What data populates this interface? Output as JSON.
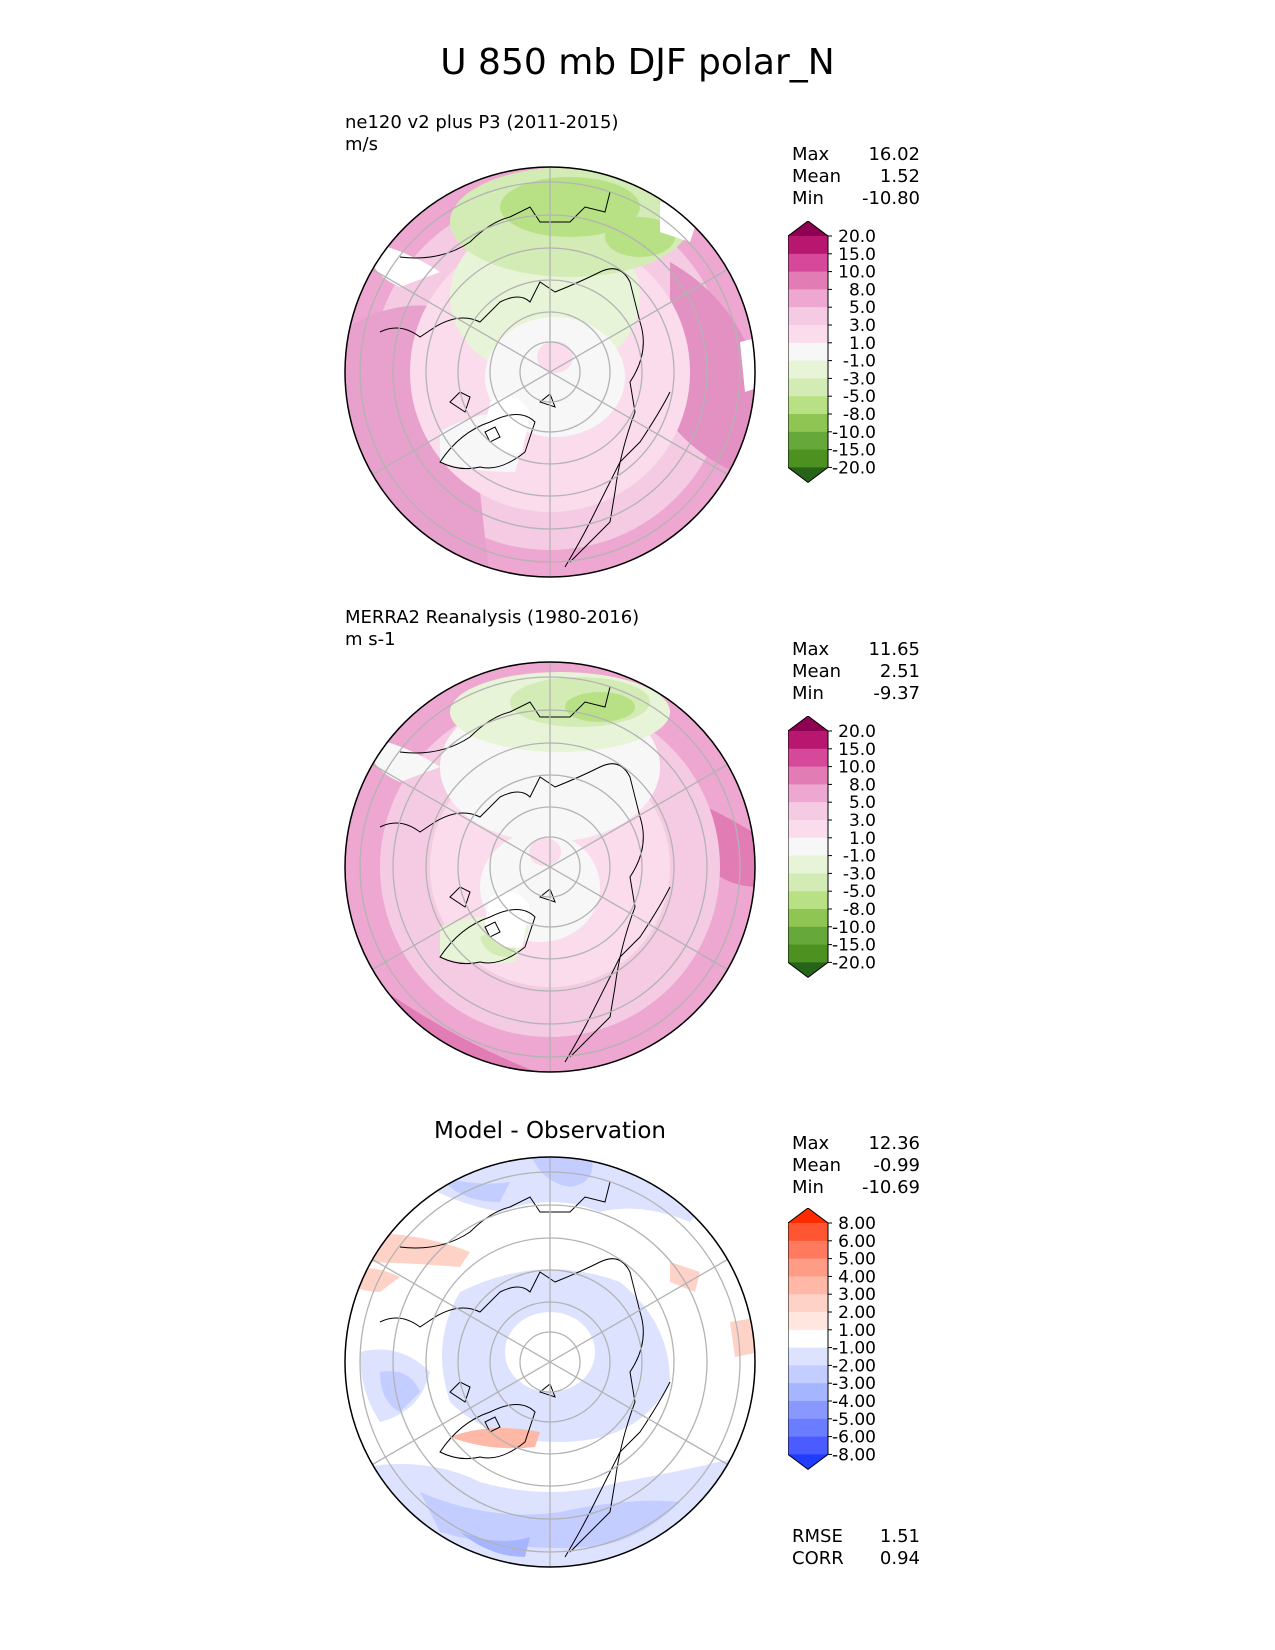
{
  "figure": {
    "title": "U 850 mb DJF polar_N"
  },
  "panels": [
    {
      "id": "test",
      "title_line1": "ne120 v2 plus P3 (2011-2015)",
      "title_line2": "m/s",
      "stats": {
        "max_label": "Max",
        "max": "16.02",
        "mean_label": "Mean",
        "mean": "1.52",
        "min_label": "Min",
        "min": "-10.80"
      },
      "colorbar": {
        "levels": [
          "20.0",
          "15.0",
          "10.0",
          "8.0",
          "5.0",
          "3.0",
          "1.0",
          "-1.0",
          "-3.0",
          "-5.0",
          "-8.0",
          "-10.0",
          "-15.0",
          "-20.0"
        ],
        "colors": [
          "#8e0152",
          "#b8176f",
          "#d6499a",
          "#e27cb5",
          "#eda7d0",
          "#f5cbe4",
          "#fadcec",
          "#f7f7f7",
          "#e8f4d8",
          "#d3ecb5",
          "#b8e186",
          "#8fc653",
          "#67a83a",
          "#4d9221",
          "#276419"
        ]
      }
    },
    {
      "id": "reference",
      "title_line1": "MERRA2 Reanalysis (1980-2016)",
      "title_line2": "m s-1",
      "stats": {
        "max_label": "Max",
        "max": "11.65",
        "mean_label": "Mean",
        "mean": "2.51",
        "min_label": "Min",
        "min": "-9.37"
      },
      "colorbar": {
        "levels": [
          "20.0",
          "15.0",
          "10.0",
          "8.0",
          "5.0",
          "3.0",
          "1.0",
          "-1.0",
          "-3.0",
          "-5.0",
          "-8.0",
          "-10.0",
          "-15.0",
          "-20.0"
        ],
        "colors": [
          "#8e0152",
          "#b8176f",
          "#d6499a",
          "#e27cb5",
          "#eda7d0",
          "#f5cbe4",
          "#fadcec",
          "#f7f7f7",
          "#e8f4d8",
          "#d3ecb5",
          "#b8e186",
          "#8fc653",
          "#67a83a",
          "#4d9221",
          "#276419"
        ]
      }
    },
    {
      "id": "diff",
      "title_center": "Model - Observation",
      "stats": {
        "max_label": "Max",
        "max": "12.36",
        "mean_label": "Mean",
        "mean": "-0.99",
        "min_label": "Min",
        "min": "-10.69"
      },
      "colorbar": {
        "levels": [
          "8.00",
          "6.00",
          "5.00",
          "4.00",
          "3.00",
          "2.00",
          "1.00",
          "-1.00",
          "-2.00",
          "-3.00",
          "-4.00",
          "-5.00",
          "-6.00",
          "-8.00"
        ],
        "colors": [
          "#ff2a00",
          "#ff5533",
          "#ff7a5e",
          "#ff9c85",
          "#ffb8a6",
          "#ffd2c7",
          "#ffe6df",
          "#ffffff",
          "#dde3ff",
          "#c3cdff",
          "#a6b5ff",
          "#8898ff",
          "#6a7cff",
          "#4a5cff",
          "#1f3cff"
        ]
      },
      "metrics": {
        "rmse_label": "RMSE",
        "rmse": "1.51",
        "corr_label": "CORR",
        "corr": "0.94"
      }
    }
  ]
}
